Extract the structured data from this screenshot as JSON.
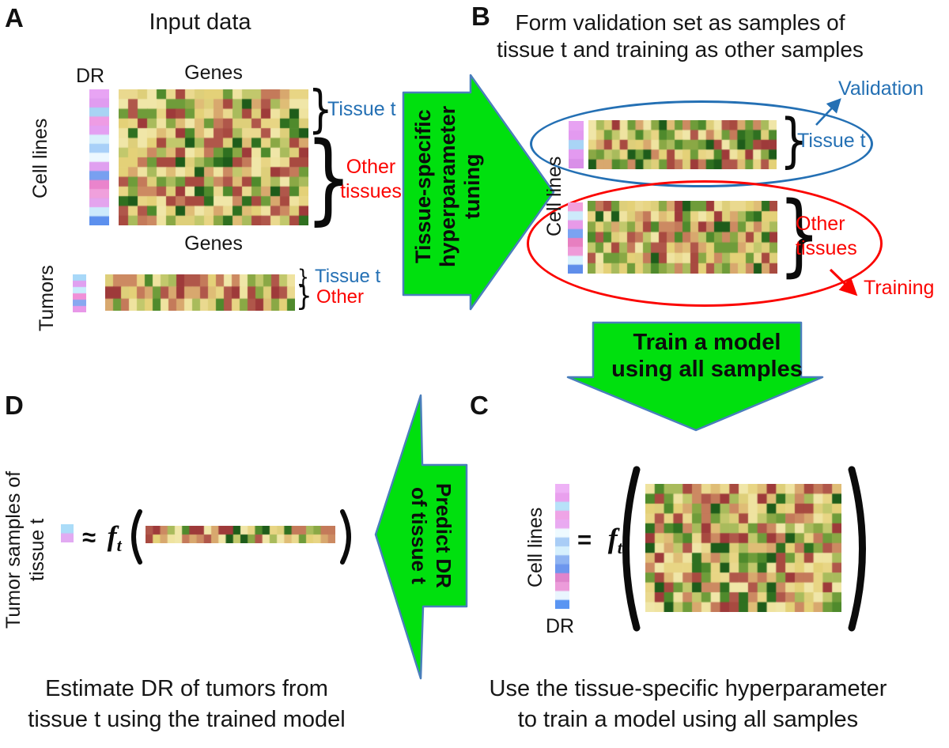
{
  "colors": {
    "arrow_green": "#00e00e",
    "arrow_border": "#4a7ebc",
    "blue": "#2470b4",
    "red": "#fb0400",
    "ink": "#161616"
  },
  "symbols": {
    "brace": "}"
  },
  "panel_a": {
    "label": "A",
    "title": "Input data",
    "dr_label": "DR",
    "genes_label_top": "Genes",
    "genes_label_bottom": "Genes",
    "cell_lines_label": "Cell lines",
    "tumors_label": "Tumors",
    "tissue_t_label": "Tissue t",
    "other_line1": "Other",
    "other_line2": "tissues",
    "tumor_tissue_t_label": "Tissue t",
    "tumor_other_label": "Other"
  },
  "arrow_ab": {
    "line1": "Tissue-specific",
    "line2": "hyperparameter",
    "line3": "tuning"
  },
  "panel_b": {
    "label": "B",
    "title_line1": "Form validation set as samples of",
    "title_line2": "tissue t and training as other samples",
    "validation_label": "Validation",
    "training_label": "Training",
    "cell_lines_label": "Cell lines",
    "tissue_t_label": "Tissue t",
    "other_line1": "Other",
    "other_line2": "tissues"
  },
  "arrow_bc": {
    "line1": "Train a model",
    "line2": "using all samples"
  },
  "panel_c": {
    "label": "C",
    "cell_lines_label": "Cell lines",
    "dr_label": "DR",
    "eq_sign": "=",
    "eq_f": "f",
    "eq_sub": "t",
    "caption_line1": "Use the tissue-specific hyperparameter",
    "caption_line2": "to train a model using all samples"
  },
  "arrow_cd": {
    "line1": "Predict DR",
    "line2": "of tissue t"
  },
  "panel_d": {
    "label": "D",
    "ylabel_line1": "Tumor samples of",
    "ylabel_line2": "tissue t",
    "approx_sign": "≈",
    "eq_f": "f",
    "eq_sub": "t",
    "caption_line1": "Estimate DR of tumors from",
    "caption_line2": "tissue t using the trained model"
  },
  "expression_palette": [
    "#9e3a3a",
    "#a84a40",
    "#b0574a",
    "#c47a5a",
    "#cc8a62",
    "#d8a86e",
    "#dfbd76",
    "#e8d584",
    "#efe3a0",
    "#e4d178",
    "#ead98f",
    "#f0e6a8",
    "#decf7a",
    "#c2c86c",
    "#a9bb5c",
    "#8aa845",
    "#6f9c3a",
    "#4f8a2c",
    "#2f7020",
    "#1e5c1a"
  ],
  "heatmaps": {
    "a_cell_lines": {
      "rows": 14,
      "cols": 20,
      "seed": 11
    },
    "a_tumors": {
      "rows": 3,
      "cols": 24,
      "seed": 22
    },
    "b_validation": {
      "rows": 5,
      "cols": 24,
      "seed": 33
    },
    "b_training": {
      "rows": 7,
      "cols": 24,
      "seed": 44
    },
    "c_all": {
      "rows": 13,
      "cols": 21,
      "seed": 55
    },
    "d_tumor": {
      "rows": 2,
      "cols": 26,
      "seed": 66
    }
  },
  "dr_strips": {
    "a_cell_lines": [
      "#e8a4f4",
      "#e09cf0",
      "#a8d4f4",
      "#ee9ce4",
      "#e4a0f2",
      "#d8f0fc",
      "#a8d0f8",
      "#ecf8ff",
      "#e0a0f0",
      "#78a0f0",
      "#ea84cc",
      "#f0a0dc",
      "#e4a4ee",
      "#cceafc",
      "#5c90ee"
    ],
    "a_tumors": [
      "#a8d8f8",
      "#e0a0f0",
      "#c8ecfc",
      "#f090d8",
      "#88a8f0",
      "#e898e8"
    ],
    "b_validation": [
      "#e7a2f2",
      "#e39af0",
      "#a9d4f6",
      "#e39af0",
      "#d98fe8"
    ],
    "b_training": [
      "#f2a0dc",
      "#cdebfb",
      "#e79ae8",
      "#7aa3f2",
      "#e77fc0",
      "#ef9ad8",
      "#d9f2fd",
      "#5f8eea"
    ],
    "c_all": [
      "#eeb2f6",
      "#e9a0ee",
      "#b7e2f9",
      "#efa4e6",
      "#e9aaf1",
      "#eefaff",
      "#a9cdf6",
      "#d6f0fd",
      "#8fb4f2",
      "#6d96ee",
      "#df84cb",
      "#ec9cda",
      "#eaf6fe",
      "#5a95f2"
    ],
    "d_swatch": [
      "#abdcf8",
      "#e2aaf2"
    ]
  }
}
